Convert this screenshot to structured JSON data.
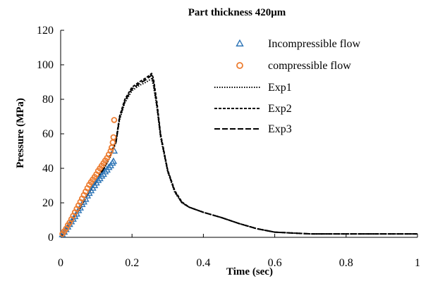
{
  "chart_data": {
    "type": "scatter",
    "title": "Part thickness 420μm",
    "xlabel": "Time (sec)",
    "ylabel": "Pressure (MPa)",
    "xlim": [
      0,
      1
    ],
    "ylim": [
      0,
      120
    ],
    "xticks": [
      0,
      0.2,
      0.4,
      0.6,
      0.8,
      1
    ],
    "yticks": [
      0,
      20,
      40,
      60,
      80,
      100,
      120
    ],
    "xtick_labels": [
      "0",
      "0.2",
      "0.4",
      "0.6",
      "0.8",
      "1"
    ],
    "ytick_labels": [
      "0",
      "20",
      "40",
      "60",
      "80",
      "100",
      "120"
    ],
    "grid": false,
    "legend_position": "top-right",
    "series": [
      {
        "name": "Incompressible flow",
        "kind": "marker",
        "marker": "triangle",
        "color": "#2E75B6",
        "x": [
          0.005,
          0.01,
          0.015,
          0.02,
          0.025,
          0.03,
          0.035,
          0.04,
          0.045,
          0.05,
          0.055,
          0.06,
          0.065,
          0.07,
          0.075,
          0.08,
          0.085,
          0.09,
          0.095,
          0.1,
          0.105,
          0.11,
          0.115,
          0.12,
          0.125,
          0.13,
          0.135,
          0.14,
          0.145,
          0.148,
          0.15
        ],
        "y": [
          1.5,
          3,
          4.5,
          6,
          7.5,
          9,
          10.5,
          12,
          13.5,
          15.5,
          17,
          19,
          20.5,
          22,
          24,
          25.5,
          27,
          28.5,
          30,
          31.5,
          33,
          34,
          35.5,
          36.5,
          38,
          39,
          40.5,
          41.5,
          43,
          44,
          50
        ]
      },
      {
        "name": "compressible flow",
        "kind": "marker",
        "marker": "circle",
        "color": "#ED7D31",
        "x": [
          0.005,
          0.01,
          0.015,
          0.02,
          0.025,
          0.03,
          0.035,
          0.04,
          0.045,
          0.05,
          0.055,
          0.06,
          0.065,
          0.07,
          0.075,
          0.08,
          0.085,
          0.09,
          0.095,
          0.1,
          0.105,
          0.11,
          0.115,
          0.12,
          0.125,
          0.13,
          0.135,
          0.14,
          0.143,
          0.146,
          0.148,
          0.15
        ],
        "y": [
          2,
          3.5,
          5,
          7,
          8.5,
          10.5,
          12.5,
          14.5,
          16.5,
          18.5,
          20.5,
          22.5,
          24.5,
          26.5,
          28.5,
          30.5,
          32,
          33.5,
          35,
          36.5,
          38.5,
          40,
          41.5,
          43,
          44.5,
          46,
          48,
          50,
          52,
          55,
          58,
          68
        ]
      },
      {
        "name": "Exp1",
        "kind": "line",
        "dash": "1.5,2",
        "color": "#000000",
        "x": [
          0,
          0.02,
          0.05,
          0.08,
          0.1,
          0.12,
          0.14,
          0.155,
          0.165,
          0.18,
          0.2,
          0.22,
          0.24,
          0.255,
          0.26,
          0.27,
          0.28,
          0.3,
          0.32,
          0.34,
          0.36,
          0.4,
          0.45,
          0.5,
          0.55,
          0.6,
          0.7,
          0.8,
          0.9,
          1.0
        ],
        "y": [
          0,
          6,
          15,
          26,
          32,
          39,
          47,
          55,
          68,
          78,
          85,
          88,
          90,
          92,
          88,
          75,
          58,
          38,
          26,
          20,
          17.5,
          14.5,
          11.5,
          8,
          5,
          3,
          2,
          2,
          2,
          2
        ]
      },
      {
        "name": "Exp2",
        "kind": "line",
        "dash": "4,2",
        "color": "#000000",
        "x": [
          0,
          0.02,
          0.05,
          0.08,
          0.1,
          0.12,
          0.14,
          0.155,
          0.165,
          0.18,
          0.2,
          0.22,
          0.24,
          0.255,
          0.26,
          0.27,
          0.28,
          0.3,
          0.32,
          0.34,
          0.36,
          0.4,
          0.45,
          0.5,
          0.55,
          0.6,
          0.7,
          0.8,
          0.9,
          1.0
        ],
        "y": [
          0,
          6.5,
          16,
          27,
          33,
          40,
          48,
          56,
          70,
          80,
          87,
          90,
          92.5,
          95,
          92,
          78,
          60,
          39,
          27,
          20.5,
          17.5,
          14.5,
          11.5,
          8,
          5,
          3,
          2,
          2,
          2,
          2
        ]
      },
      {
        "name": "Exp3",
        "kind": "line",
        "dash": "8,3",
        "color": "#000000",
        "x": [
          0,
          0.02,
          0.05,
          0.08,
          0.1,
          0.12,
          0.14,
          0.155,
          0.165,
          0.18,
          0.2,
          0.22,
          0.24,
          0.255,
          0.26,
          0.27,
          0.28,
          0.3,
          0.32,
          0.34,
          0.36,
          0.4,
          0.45,
          0.5,
          0.55,
          0.6,
          0.7,
          0.8,
          0.9,
          1.0
        ],
        "y": [
          0,
          6,
          15.5,
          26.5,
          32.5,
          39.5,
          47.5,
          55,
          69,
          79,
          86,
          89,
          91.5,
          94,
          90,
          76,
          59,
          38.5,
          26.5,
          20,
          17.5,
          14.5,
          11.5,
          8,
          5,
          3,
          2,
          2,
          2,
          2
        ]
      }
    ]
  }
}
